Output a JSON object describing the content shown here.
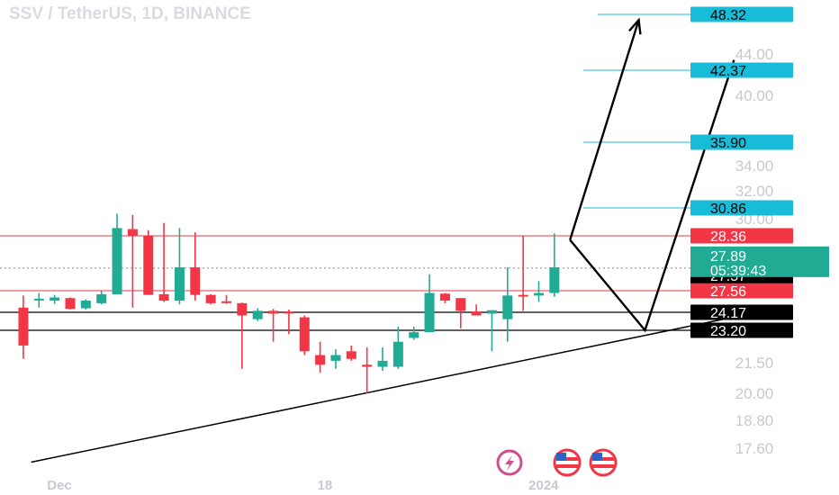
{
  "header": {
    "title": "SSV / TetherUS, 1D, BINANCE"
  },
  "colors": {
    "up": "#22ab94",
    "down": "#f23645",
    "target": "#18bcd8",
    "resistance": "#f23645",
    "support": "#000000",
    "axis_text": "#c7c9cf"
  },
  "chart_data": {
    "type": "candlestick",
    "title": "SSV / TetherUS, 1D, BINANCE",
    "ylim": [
      16.8,
      50.5
    ],
    "y_ticks": [
      "44.00",
      "40.00",
      "34.00",
      "32.00",
      "30.00",
      "21.50",
      "20.00",
      "18.80",
      "17.60"
    ],
    "x_ticks": [
      {
        "label": "Dec",
        "day": 0
      },
      {
        "label": "18",
        "day": 17
      },
      {
        "label": "2024",
        "day": 31
      }
    ],
    "candles": [
      {
        "day": -3,
        "o": 24.9,
        "h": 26.8,
        "l": 21.7,
        "c": 22.4
      },
      {
        "day": -2,
        "o": 26.2,
        "h": 27.2,
        "l": 24.9,
        "c": 26.3
      },
      {
        "day": -1,
        "o": 26.0,
        "h": 26.9,
        "l": 25.5,
        "c": 26.5
      },
      {
        "day": 0,
        "o": 26.4,
        "h": 26.5,
        "l": 24.6,
        "c": 24.7
      },
      {
        "day": 1,
        "o": 24.8,
        "h": 26.2,
        "l": 24.6,
        "c": 26.0
      },
      {
        "day": 2,
        "o": 25.6,
        "h": 27.5,
        "l": 25.4,
        "c": 27.0
      },
      {
        "day": 3,
        "o": 27.0,
        "h": 30.4,
        "l": 27.0,
        "c": 29.1
      },
      {
        "day": 4,
        "o": 29.0,
        "h": 30.3,
        "l": 24.9,
        "c": 28.4
      },
      {
        "day": 5,
        "o": 28.4,
        "h": 28.9,
        "l": 27.0,
        "c": 26.9
      },
      {
        "day": 6,
        "o": 27.0,
        "h": 29.6,
        "l": 25.8,
        "c": 26.0
      },
      {
        "day": 7,
        "o": 26.0,
        "h": 29.1,
        "l": 25.4,
        "c": 27.9
      },
      {
        "day": 8,
        "o": 27.9,
        "h": 28.7,
        "l": 26.0,
        "c": 26.9
      },
      {
        "day": 9,
        "o": 26.9,
        "h": 27.0,
        "l": 25.4,
        "c": 25.6
      },
      {
        "day": 10,
        "o": 25.9,
        "h": 26.9,
        "l": 25.5,
        "c": 25.7
      },
      {
        "day": 11,
        "o": 25.6,
        "h": 25.7,
        "l": 21.2,
        "c": 24.0
      },
      {
        "day": 12,
        "o": 23.8,
        "h": 24.8,
        "l": 23.7,
        "c": 24.4
      },
      {
        "day": 13,
        "o": 24.4,
        "h": 24.7,
        "l": 22.6,
        "c": 24.1
      },
      {
        "day": 14,
        "o": 24.3,
        "h": 24.6,
        "l": 23.0,
        "c": 24.1
      },
      {
        "day": 15,
        "o": 23.9,
        "h": 24.0,
        "l": 21.9,
        "c": 22.1
      },
      {
        "day": 16,
        "o": 21.9,
        "h": 22.6,
        "l": 21.0,
        "c": 21.4
      },
      {
        "day": 17,
        "o": 21.6,
        "h": 22.2,
        "l": 21.2,
        "c": 21.9
      },
      {
        "day": 18,
        "o": 22.1,
        "h": 22.4,
        "l": 21.6,
        "c": 21.7
      },
      {
        "day": 19,
        "o": 21.4,
        "h": 22.3,
        "l": 20.0,
        "c": 21.3
      },
      {
        "day": 20,
        "o": 21.3,
        "h": 22.3,
        "l": 21.1,
        "c": 21.6
      },
      {
        "day": 21,
        "o": 21.3,
        "h": 23.4,
        "l": 21.2,
        "c": 22.6
      },
      {
        "day": 22,
        "o": 22.8,
        "h": 23.4,
        "l": 22.7,
        "c": 23.1
      },
      {
        "day": 23,
        "o": 23.1,
        "h": 27.8,
        "l": 23.1,
        "c": 27.2
      },
      {
        "day": 24,
        "o": 27.1,
        "h": 27.2,
        "l": 25.6,
        "c": 26.0
      },
      {
        "day": 25,
        "o": 26.4,
        "h": 26.4,
        "l": 23.3,
        "c": 24.4
      },
      {
        "day": 26,
        "o": 24.3,
        "h": 25.4,
        "l": 24.0,
        "c": 24.0
      },
      {
        "day": 27,
        "o": 24.1,
        "h": 24.4,
        "l": 22.1,
        "c": 24.5
      },
      {
        "day": 28,
        "o": 23.8,
        "h": 27.9,
        "l": 22.6,
        "c": 26.8
      },
      {
        "day": 29,
        "o": 26.9,
        "h": 28.4,
        "l": 24.4,
        "c": 26.8
      },
      {
        "day": 30,
        "o": 26.8,
        "h": 27.7,
        "l": 25.8,
        "c": 27.2
      },
      {
        "day": 31,
        "o": 27.2,
        "h": 28.6,
        "l": 26.6,
        "c": 27.9
      }
    ],
    "horizontal_levels": [
      {
        "name": "target-48",
        "value": 48.32,
        "label": "48.32",
        "style": "target"
      },
      {
        "name": "target-42",
        "value": 42.37,
        "label": "42.37",
        "style": "target"
      },
      {
        "name": "target-36",
        "value": 35.9,
        "label": "35.90",
        "style": "target"
      },
      {
        "name": "target-31",
        "value": 30.86,
        "label": "30.86",
        "style": "target"
      },
      {
        "name": "resistance-high",
        "value": 28.36,
        "label": "28.36",
        "style": "resistance"
      },
      {
        "name": "resistance-low",
        "value": 27.56,
        "label": "27.56",
        "style": "resistance"
      },
      {
        "name": "support-high",
        "value": 24.17,
        "label": "24.17",
        "style": "support"
      },
      {
        "name": "support-low",
        "value": 23.2,
        "label": "23.20",
        "style": "support"
      }
    ],
    "current_price": {
      "value": 27.89,
      "label": "27.89",
      "countdown": "05:39:43"
    },
    "bid_price": {
      "value": 27.57,
      "label": "27.57"
    },
    "trendline": [
      {
        "day": -2.5,
        "y": 17.0
      },
      {
        "day": 46.0,
        "y": 25.2
      }
    ],
    "projection_path": [
      {
        "day": 32.0,
        "y": 28.3
      },
      {
        "day": 36.8,
        "y": 23.2
      },
      {
        "day": 42.5,
        "y": 43.4
      }
    ],
    "projection_arrow": [
      {
        "day": 32.0,
        "y": 28.3
      },
      {
        "day": 36.4,
        "y": 47.7
      }
    ]
  }
}
